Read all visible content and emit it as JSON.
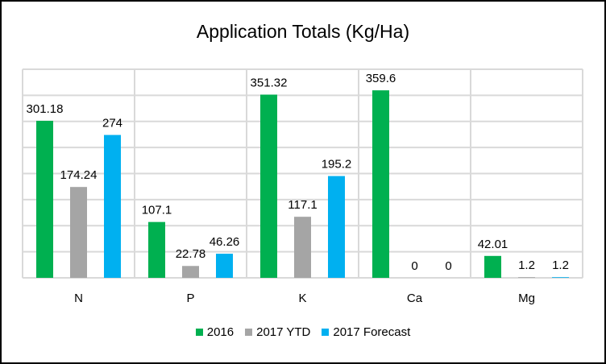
{
  "chart_data": {
    "type": "bar",
    "title": "Application Totals (Kg/Ha)",
    "categories": [
      "N",
      "P",
      "K",
      "Ca",
      "Mg"
    ],
    "series": [
      {
        "name": "2016",
        "color": "#00B050",
        "values": [
          301.18,
          107.1,
          351.32,
          359.6,
          42.01
        ]
      },
      {
        "name": "2017 YTD",
        "color": "#A5A5A5",
        "values": [
          174.24,
          22.78,
          117.1,
          0,
          1.2
        ]
      },
      {
        "name": "2017 Forecast",
        "color": "#00B0F0",
        "values": [
          274,
          46.26,
          195.2,
          0,
          1.2
        ]
      }
    ],
    "data_labels": [
      [
        "301.18",
        "107.1",
        "351.32",
        "359.6",
        "42.01"
      ],
      [
        "174.24",
        "22.78",
        "117.1",
        "0",
        "1.2"
      ],
      [
        "274",
        "46.26",
        "195.2",
        "0",
        "1.2"
      ]
    ],
    "ylim": [
      0,
      400
    ],
    "y_major_unit": 50,
    "y_axis_labels_shown": false,
    "grid": true,
    "legend": "bottom"
  }
}
